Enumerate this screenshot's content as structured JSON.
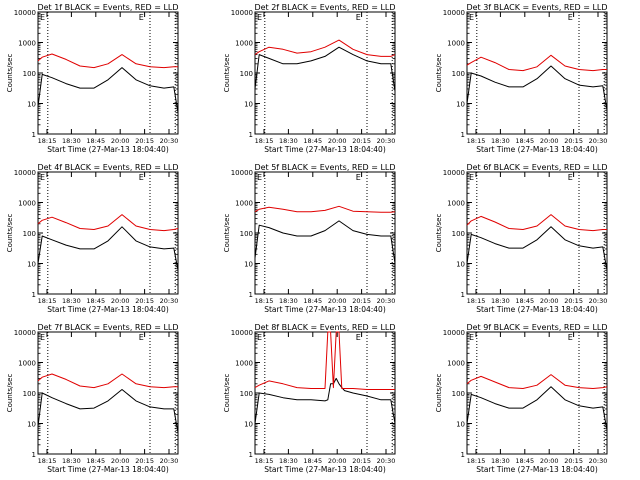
{
  "figure": {
    "xlabel": "Start Time (27-Mar-13 18:04:40)",
    "ylabel": "Counts/sec",
    "x_tick_labels": [
      "18:15",
      "18:30",
      "18:45",
      "20:00",
      "20:15",
      "20:30"
    ],
    "y_tick_labels": [
      "1",
      "10",
      "100",
      "1000",
      "10000"
    ],
    "corner_marks": [
      "E",
      "E"
    ],
    "colors": {
      "events": "#000000",
      "lld": "#e00000",
      "axes": "#000000",
      "background": "#ffffff"
    }
  },
  "chart_data": [
    {
      "type": "line",
      "title": "Det 1f BLACK = Events, RED = LLD",
      "ylim": [
        1,
        10000
      ],
      "yscale": "log",
      "legend": "title",
      "x": [
        0,
        0.03,
        0.1,
        0.2,
        0.3,
        0.4,
        0.5,
        0.6,
        0.7,
        0.8,
        0.9,
        0.97,
        1
      ],
      "series": [
        {
          "name": "Events",
          "color": "#000000",
          "values": [
            8,
            90,
            70,
            45,
            32,
            32,
            60,
            150,
            60,
            38,
            32,
            35,
            5
          ]
        },
        {
          "name": "LLD",
          "color": "#e00000",
          "values": [
            250,
            330,
            420,
            280,
            170,
            150,
            200,
            400,
            200,
            160,
            150,
            160,
            160
          ]
        }
      ],
      "markers": [
        0.07,
        0.8
      ]
    },
    {
      "type": "line",
      "title": "Det 2f BLACK = Events, RED = LLD",
      "ylim": [
        1,
        10000
      ],
      "yscale": "log",
      "legend": "title",
      "x": [
        0,
        0.03,
        0.1,
        0.2,
        0.3,
        0.4,
        0.5,
        0.6,
        0.7,
        0.8,
        0.9,
        0.97,
        1
      ],
      "series": [
        {
          "name": "Events",
          "color": "#000000",
          "values": [
            30,
            400,
            300,
            200,
            200,
            250,
            350,
            700,
            400,
            250,
            200,
            200,
            25
          ]
        },
        {
          "name": "LLD",
          "color": "#e00000",
          "values": [
            400,
            500,
            700,
            600,
            450,
            500,
            700,
            1200,
            600,
            400,
            350,
            350,
            400
          ]
        }
      ],
      "markers": [
        0.07,
        0.8
      ]
    },
    {
      "type": "line",
      "title": "Det 3f BLACK = Events, RED = LLD",
      "ylim": [
        1,
        10000
      ],
      "yscale": "log",
      "legend": "title",
      "x": [
        0,
        0.03,
        0.1,
        0.2,
        0.3,
        0.4,
        0.5,
        0.6,
        0.7,
        0.8,
        0.9,
        0.97,
        1
      ],
      "series": [
        {
          "name": "Events",
          "color": "#000000",
          "values": [
            10,
            100,
            80,
            50,
            35,
            35,
            65,
            170,
            65,
            40,
            35,
            38,
            6
          ]
        },
        {
          "name": "LLD",
          "color": "#e00000",
          "values": [
            180,
            220,
            330,
            220,
            130,
            120,
            160,
            380,
            170,
            130,
            120,
            130,
            130
          ]
        }
      ],
      "markers": [
        0.07,
        0.8
      ]
    },
    {
      "type": "line",
      "title": "Det 4f BLACK = Events, RED = LLD",
      "ylim": [
        1,
        10000
      ],
      "yscale": "log",
      "legend": "title",
      "x": [
        0,
        0.03,
        0.1,
        0.2,
        0.3,
        0.4,
        0.5,
        0.6,
        0.7,
        0.8,
        0.9,
        0.97,
        1
      ],
      "series": [
        {
          "name": "Events",
          "color": "#000000",
          "values": [
            10,
            80,
            60,
            40,
            30,
            30,
            55,
            160,
            55,
            35,
            30,
            32,
            6
          ]
        },
        {
          "name": "LLD",
          "color": "#e00000",
          "values": [
            200,
            260,
            330,
            220,
            140,
            130,
            170,
            400,
            170,
            130,
            120,
            130,
            140
          ]
        }
      ],
      "markers": [
        0.07,
        0.8
      ]
    },
    {
      "type": "line",
      "title": "Det 5f BLACK = Events, RED = LLD",
      "ylim": [
        1,
        10000
      ],
      "yscale": "log",
      "legend": "title",
      "x": [
        0,
        0.03,
        0.1,
        0.2,
        0.3,
        0.4,
        0.5,
        0.6,
        0.7,
        0.8,
        0.9,
        0.97,
        1
      ],
      "series": [
        {
          "name": "Events",
          "color": "#000000",
          "values": [
            15,
            180,
            150,
            100,
            80,
            80,
            120,
            250,
            120,
            90,
            80,
            80,
            10
          ]
        },
        {
          "name": "LLD",
          "color": "#e00000",
          "values": [
            500,
            600,
            700,
            600,
            500,
            500,
            550,
            750,
            520,
            500,
            480,
            480,
            500
          ]
        }
      ],
      "markers": [
        0.07,
        0.8
      ]
    },
    {
      "type": "line",
      "title": "Det 6f BLACK = Events, RED = LLD",
      "ylim": [
        1,
        10000
      ],
      "yscale": "log",
      "legend": "title",
      "x": [
        0,
        0.03,
        0.1,
        0.2,
        0.3,
        0.4,
        0.5,
        0.6,
        0.7,
        0.8,
        0.9,
        0.97,
        1
      ],
      "series": [
        {
          "name": "Events",
          "color": "#000000",
          "values": [
            10,
            90,
            70,
            45,
            32,
            32,
            60,
            160,
            60,
            38,
            32,
            35,
            6
          ]
        },
        {
          "name": "LLD",
          "color": "#e00000",
          "values": [
            180,
            250,
            350,
            230,
            140,
            130,
            170,
            400,
            170,
            130,
            120,
            130,
            130
          ]
        }
      ],
      "markers": [
        0.07,
        0.8
      ]
    },
    {
      "type": "line",
      "title": "Det 7f BLACK = Events, RED = LLD",
      "ylim": [
        1,
        10000
      ],
      "yscale": "log",
      "legend": "title",
      "x": [
        0,
        0.03,
        0.1,
        0.2,
        0.3,
        0.4,
        0.5,
        0.6,
        0.7,
        0.8,
        0.9,
        0.97,
        1
      ],
      "series": [
        {
          "name": "Events",
          "color": "#000000",
          "values": [
            8,
            100,
            70,
            45,
            30,
            32,
            55,
            130,
            55,
            35,
            30,
            30,
            5
          ]
        },
        {
          "name": "LLD",
          "color": "#e00000",
          "values": [
            250,
            330,
            420,
            280,
            170,
            150,
            200,
            420,
            200,
            160,
            150,
            160,
            160
          ]
        }
      ],
      "markers": [
        0.07,
        0.8
      ]
    },
    {
      "type": "line",
      "title": "Det 8f BLACK = Events, RED = LLD",
      "ylim": [
        1,
        10000
      ],
      "yscale": "log",
      "legend": "title",
      "x": [
        0,
        0.03,
        0.1,
        0.2,
        0.3,
        0.4,
        0.5,
        0.52,
        0.54,
        0.56,
        0.58,
        0.6,
        0.62,
        0.64,
        0.7,
        0.8,
        0.9,
        0.97,
        1
      ],
      "series": [
        {
          "name": "Events",
          "color": "#000000",
          "values": [
            10,
            100,
            90,
            70,
            60,
            60,
            55,
            60,
            200,
            200,
            300,
            200,
            150,
            120,
            100,
            80,
            60,
            60,
            10
          ]
        },
        {
          "name": "LLD",
          "color": "#e00000",
          "values": [
            150,
            180,
            250,
            200,
            150,
            140,
            140,
            10000,
            10000,
            150,
            10000,
            10000,
            140,
            140,
            140,
            130,
            130,
            130,
            130
          ]
        }
      ],
      "markers": [
        0.07,
        0.8
      ]
    },
    {
      "type": "line",
      "title": "Det 9f BLACK = Events, RED = LLD",
      "ylim": [
        1,
        10000
      ],
      "yscale": "log",
      "legend": "title",
      "x": [
        0,
        0.03,
        0.1,
        0.2,
        0.3,
        0.4,
        0.5,
        0.6,
        0.7,
        0.8,
        0.9,
        0.97,
        1
      ],
      "series": [
        {
          "name": "Events",
          "color": "#000000",
          "values": [
            10,
            90,
            70,
            45,
            32,
            32,
            60,
            160,
            60,
            38,
            32,
            35,
            6
          ]
        },
        {
          "name": "LLD",
          "color": "#e00000",
          "values": [
            200,
            260,
            350,
            230,
            150,
            140,
            180,
            400,
            180,
            150,
            140,
            150,
            160
          ]
        }
      ],
      "markers": [
        0.07,
        0.8
      ]
    }
  ]
}
